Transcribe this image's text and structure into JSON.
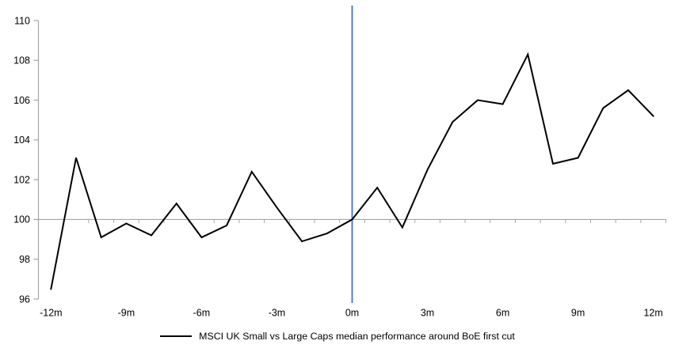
{
  "chart_data": {
    "type": "line",
    "title": "",
    "xlabel": "",
    "ylabel": "",
    "categories": [
      -12,
      -11,
      -10,
      -9,
      -8,
      -7,
      -6,
      -5,
      -4,
      -3,
      -2,
      -1,
      0,
      1,
      2,
      3,
      4,
      5,
      6,
      7,
      8,
      9,
      10,
      11,
      12
    ],
    "series": [
      {
        "name": "MSCI UK Small vs Large Caps median performance around BoE first cut",
        "color": "#000000",
        "values": [
          96.5,
          103.1,
          99.1,
          99.8,
          99.2,
          100.8,
          99.1,
          99.7,
          102.4,
          100.6,
          98.9,
          99.3,
          100.0,
          101.6,
          99.6,
          102.5,
          104.9,
          106.0,
          105.8,
          108.3,
          102.8,
          103.1,
          105.6,
          106.5,
          105.2
        ]
      }
    ],
    "ylim": [
      96,
      110
    ],
    "yticks": [
      {
        "value": 96,
        "label": "96"
      },
      {
        "value": 98,
        "label": "98"
      },
      {
        "value": 100,
        "label": "100"
      },
      {
        "value": 102,
        "label": "102"
      },
      {
        "value": 104,
        "label": "104"
      },
      {
        "value": 106,
        "label": "106"
      },
      {
        "value": 108,
        "label": "108"
      },
      {
        "value": 110,
        "label": "110"
      }
    ],
    "xticks": [
      {
        "value": -12,
        "label": "-12m"
      },
      {
        "value": -9,
        "label": "-9m"
      },
      {
        "value": -6,
        "label": "-6m"
      },
      {
        "value": -3,
        "label": "-3m"
      },
      {
        "value": 0,
        "label": "0m"
      },
      {
        "value": 3,
        "label": "3m"
      },
      {
        "value": 6,
        "label": "6m"
      },
      {
        "value": 9,
        "label": "9m"
      },
      {
        "value": 12,
        "label": "12m"
      }
    ],
    "baseline": {
      "value": 100,
      "color": "#a6a6a6"
    },
    "event_line": {
      "x": 0,
      "color": "#4f81bd"
    },
    "axis_color": "#a6a6a6",
    "text_color": "#000000",
    "grid": "off",
    "legend_position": "bottom-center"
  }
}
